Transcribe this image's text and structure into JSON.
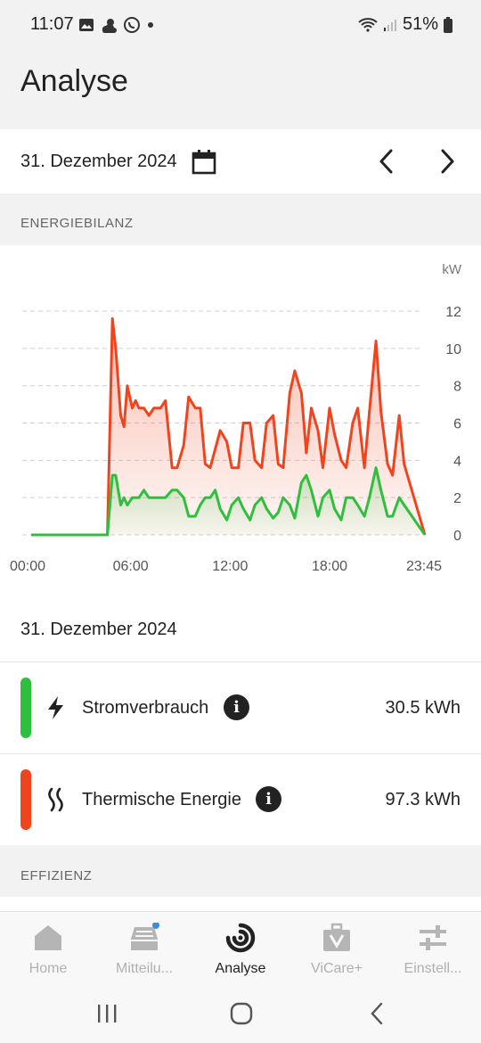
{
  "status_bar": {
    "time": "11:07",
    "battery": "51%"
  },
  "page": {
    "title": "Analyse"
  },
  "date_selector": {
    "date": "31. Dezember 2024"
  },
  "sections": {
    "energy_balance": "ENERGIEBILANZ",
    "efficiency": "EFFIZIENZ"
  },
  "chart_data": {
    "type": "area",
    "unit": "kW",
    "ylim": [
      0,
      12
    ],
    "y_ticks": [
      "12",
      "10",
      "8",
      "6",
      "4",
      "2",
      "0"
    ],
    "x_tick_labels": [
      "00:00",
      "06:00",
      "12:00",
      "18:00",
      "23:45"
    ],
    "x_tick_hours": [
      0,
      6,
      12,
      18,
      23.75
    ],
    "grid": true,
    "series": [
      {
        "color": "#f0441f",
        "x": [
          0,
          4.6,
          4.9,
          5.1,
          5.4,
          5.6,
          5.8,
          6.1,
          6.3,
          6.5,
          6.8,
          7.1,
          7.4,
          7.8,
          8.1,
          8.5,
          8.8,
          9.2,
          9.5,
          9.9,
          10.2,
          10.5,
          10.8,
          11.1,
          11.4,
          11.8,
          12.1,
          12.5,
          12.8,
          13.2,
          13.5,
          13.9,
          14.2,
          14.6,
          14.9,
          15.2,
          15.6,
          15.9,
          16.3,
          16.6,
          16.9,
          17.3,
          17.6,
          18.0,
          18.3,
          18.7,
          19.0,
          19.4,
          19.7,
          20.1,
          20.4,
          20.8,
          21.1,
          21.5,
          21.8,
          22.2,
          22.5,
          23.75
        ],
        "values": [
          0,
          0,
          11.6,
          10.0,
          6.4,
          5.8,
          8.0,
          6.8,
          7.2,
          6.8,
          6.8,
          6.4,
          6.8,
          6.8,
          7.2,
          3.6,
          3.6,
          4.8,
          7.4,
          6.8,
          6.8,
          3.8,
          3.6,
          4.6,
          5.6,
          5.0,
          3.6,
          3.6,
          6.0,
          6.0,
          4.0,
          3.6,
          6.0,
          6.4,
          3.8,
          3.6,
          7.6,
          8.8,
          7.6,
          4.4,
          6.8,
          5.6,
          3.6,
          6.8,
          5.4,
          4.0,
          3.6,
          6.0,
          6.8,
          3.6,
          6.6,
          10.4,
          6.6,
          3.8,
          3.2,
          6.4,
          3.8,
          0
        ]
      },
      {
        "color": "#2fbf3f",
        "x": [
          0,
          4.6,
          4.9,
          5.1,
          5.4,
          5.6,
          5.8,
          6.1,
          6.3,
          6.5,
          6.8,
          7.1,
          7.4,
          7.8,
          8.1,
          8.5,
          8.8,
          9.2,
          9.5,
          9.9,
          10.2,
          10.5,
          10.8,
          11.1,
          11.4,
          11.8,
          12.1,
          12.5,
          12.8,
          13.2,
          13.5,
          13.9,
          14.2,
          14.6,
          14.9,
          15.2,
          15.6,
          15.9,
          16.3,
          16.6,
          16.9,
          17.3,
          17.6,
          18.0,
          18.3,
          18.7,
          19.0,
          19.4,
          19.7,
          20.1,
          20.4,
          20.8,
          21.1,
          21.5,
          21.8,
          22.2,
          22.5,
          23.75
        ],
        "values": [
          0,
          0,
          3.2,
          3.2,
          1.6,
          2.0,
          1.6,
          2.0,
          2.0,
          2.0,
          2.4,
          2.0,
          2.0,
          2.0,
          2.0,
          2.4,
          2.4,
          2.0,
          1.0,
          1.0,
          1.6,
          2.0,
          2.0,
          2.4,
          1.4,
          0.8,
          1.6,
          2.0,
          1.4,
          0.8,
          1.6,
          2.0,
          1.4,
          0.9,
          1.2,
          2.0,
          1.6,
          0.9,
          2.8,
          3.2,
          2.4,
          1.0,
          2.0,
          2.4,
          1.4,
          0.8,
          2.0,
          2.0,
          1.6,
          1.0,
          2.0,
          3.6,
          2.4,
          1.0,
          1.0,
          2.0,
          1.6,
          0
        ]
      }
    ]
  },
  "summary": {
    "date": "31. Dezember 2024",
    "items": [
      {
        "label": "Stromverbrauch",
        "value": "30.5 kWh",
        "color": "#2fbf3f",
        "icon": "lightning-icon"
      },
      {
        "label": "Thermische Energie",
        "value": "97.3 kWh",
        "color": "#f0441f",
        "icon": "heat-waves-icon"
      }
    ]
  },
  "bottom_nav": [
    {
      "label": "Home",
      "icon": "home-icon",
      "active": false
    },
    {
      "label": "Mitteilu...",
      "icon": "inbox-icon",
      "active": false
    },
    {
      "label": "Analyse",
      "icon": "analyse-icon",
      "active": true
    },
    {
      "label": "ViCare+",
      "icon": "vicare-bag-icon",
      "active": false
    },
    {
      "label": "Einstell...",
      "icon": "sliders-icon",
      "active": false
    }
  ]
}
